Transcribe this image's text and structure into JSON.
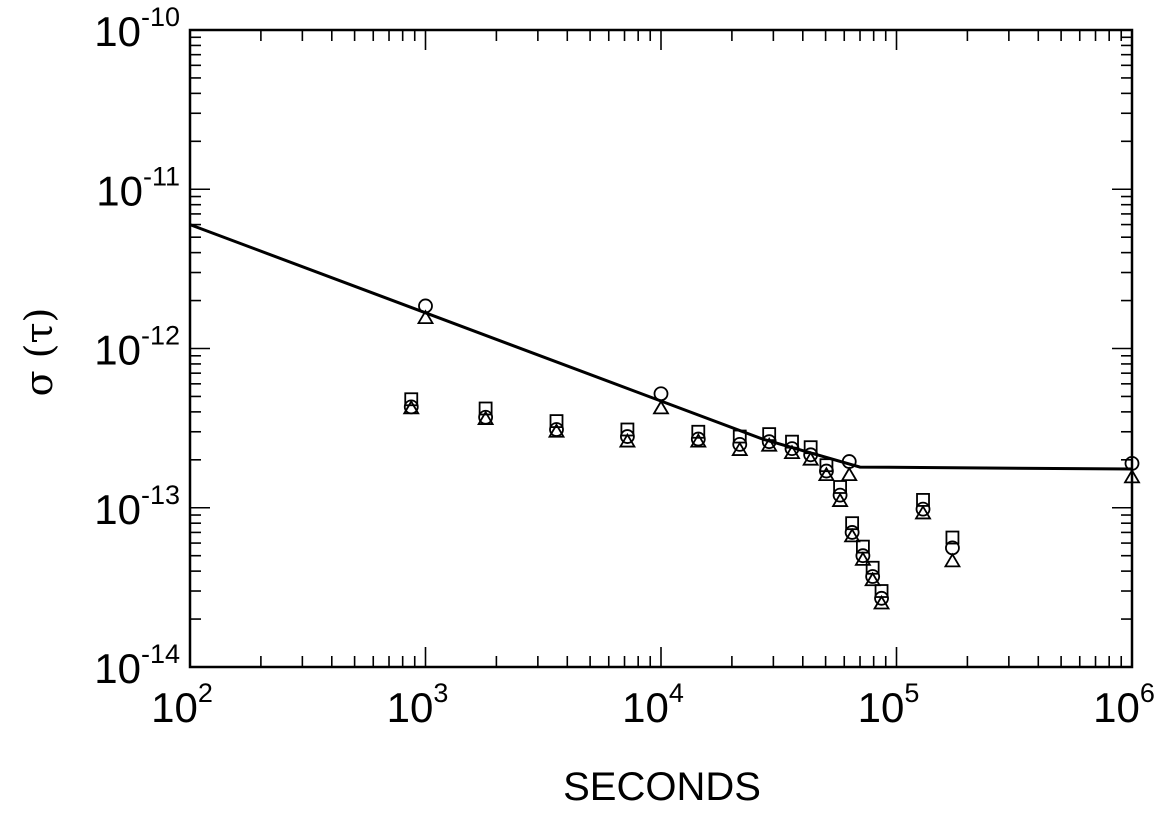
{
  "chart_data": {
    "type": "scatter",
    "title": "",
    "xlabel": "SECONDS",
    "ylabel_sym": "σ",
    "ylabel_arg": "(τ)",
    "xscale": "log",
    "yscale": "log",
    "xlim": [
      100,
      1000000
    ],
    "ylim": [
      1e-14,
      1e-10
    ],
    "x_ticks": [
      {
        "value": 100,
        "base": "10",
        "exp": "2"
      },
      {
        "value": 1000,
        "base": "10",
        "exp": "3"
      },
      {
        "value": 10000,
        "base": "10",
        "exp": "4"
      },
      {
        "value": 100000,
        "base": "10",
        "exp": "5"
      },
      {
        "value": 1000000,
        "base": "10",
        "exp": "6"
      }
    ],
    "y_ticks": [
      {
        "value": 1e-14,
        "base": "10",
        "exp": "-14"
      },
      {
        "value": 1e-13,
        "base": "10",
        "exp": "-13"
      },
      {
        "value": 1e-12,
        "base": "10",
        "exp": "-12"
      },
      {
        "value": 1e-11,
        "base": "10",
        "exp": "-11"
      },
      {
        "value": 1e-10,
        "base": "10",
        "exp": "-10"
      }
    ],
    "grid": false,
    "legend": "none",
    "line": {
      "x": [
        100,
        27000,
        70000,
        1000000
      ],
      "y": [
        6e-12,
        2.7e-13,
        1.8e-13,
        1.75e-13
      ]
    },
    "series": [
      {
        "marker": "circle",
        "x": [
          1000,
          10000,
          63000,
          1000000,
          870,
          1800,
          3600,
          7200,
          14400,
          21600,
          28800,
          36000,
          43200,
          50400,
          57600,
          64800,
          72000,
          79200,
          86400,
          129600,
          172800
        ],
        "y": [
          1.85e-12,
          5.2e-13,
          1.95e-13,
          1.9e-13,
          4.3e-13,
          3.7e-13,
          3.1e-13,
          2.8e-13,
          2.7e-13,
          2.5e-13,
          2.6e-13,
          2.35e-13,
          2.15e-13,
          1.7e-13,
          1.2e-13,
          7e-14,
          5e-14,
          3.7e-14,
          2.7e-14,
          9.8e-14,
          5.6e-14
        ]
      },
      {
        "marker": "triangle",
        "x": [
          1000,
          10000,
          63000,
          1000000,
          870,
          1800,
          3600,
          7200,
          14400,
          21600,
          28800,
          36000,
          43200,
          50400,
          57600,
          64800,
          72000,
          79200,
          86400,
          129600,
          172800
        ],
        "y": [
          1.55e-12,
          4.2e-13,
          1.6e-13,
          1.55e-13,
          4.2e-13,
          3.6e-13,
          3e-13,
          2.6e-13,
          2.6e-13,
          2.3e-13,
          2.45e-13,
          2.2e-13,
          2e-13,
          1.6e-13,
          1.1e-13,
          6.6e-14,
          4.7e-14,
          3.5e-14,
          2.5e-14,
          9.2e-14,
          4.6e-14
        ]
      },
      {
        "marker": "square",
        "x": [
          870,
          1800,
          3600,
          7200,
          14400,
          21600,
          28800,
          36000,
          43200,
          50400,
          57600,
          64800,
          72000,
          79200,
          86400,
          129600,
          172800
        ],
        "y": [
          4.8e-13,
          4.2e-13,
          3.5e-13,
          3.1e-13,
          3e-13,
          2.8e-13,
          2.9e-13,
          2.6e-13,
          2.4e-13,
          1.85e-13,
          1.35e-13,
          8e-14,
          5.7e-14,
          4.2e-14,
          3e-14,
          1.12e-13,
          6.5e-14
        ]
      }
    ]
  }
}
